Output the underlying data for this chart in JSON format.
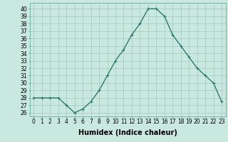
{
  "x": [
    0,
    1,
    2,
    3,
    4,
    5,
    6,
    7,
    8,
    9,
    10,
    11,
    12,
    13,
    14,
    15,
    16,
    17,
    18,
    19,
    20,
    21,
    22,
    23
  ],
  "y": [
    28,
    28,
    28,
    28,
    27,
    26,
    26.5,
    27.5,
    29,
    31,
    33,
    34.5,
    36.5,
    38,
    40,
    40,
    39,
    36.5,
    35,
    33.5,
    32,
    31,
    30,
    27.5
  ],
  "line_color": "#2d7a6e",
  "marker": "+",
  "marker_color": "#2d7a6e",
  "bg_color": "#c8e8e0",
  "grid_color": "#9dbfb8",
  "xlabel": "Humidex (Indice chaleur)",
  "ylabel_ticks": [
    26,
    27,
    28,
    29,
    30,
    31,
    32,
    33,
    34,
    35,
    36,
    37,
    38,
    39,
    40
  ],
  "ylim": [
    25.5,
    40.8
  ],
  "xlim": [
    -0.5,
    23.5
  ],
  "xtick_labels": [
    "0",
    "1",
    "2",
    "3",
    "4",
    "5",
    "6",
    "7",
    "8",
    "9",
    "10",
    "11",
    "12",
    "13",
    "14",
    "15",
    "16",
    "17",
    "18",
    "19",
    "20",
    "21",
    "22",
    "23"
  ],
  "xlabel_fontsize": 7,
  "tick_fontsize": 5.5,
  "linewidth": 1.0,
  "markersize": 3.5
}
